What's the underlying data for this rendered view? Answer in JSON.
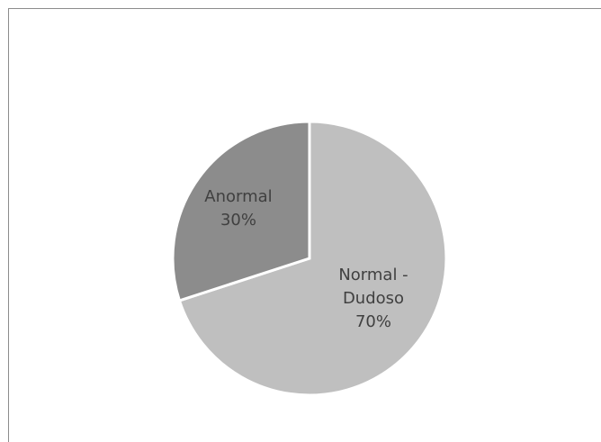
{
  "chart_data": {
    "type": "pie",
    "title": "",
    "slices": [
      {
        "name": "Normal - Dudoso",
        "label_lines": [
          "Normal -",
          "Dudoso"
        ],
        "percent_label": "70%",
        "value": 70,
        "color": "#bfbfbf"
      },
      {
        "name": "Anormal",
        "label_lines": [
          "Anormal"
        ],
        "percent_label": "30%",
        "value": 30,
        "color": "#8c8c8c"
      }
    ],
    "legend": "none",
    "start_angle_deg": 0,
    "direction": "clockwise"
  }
}
